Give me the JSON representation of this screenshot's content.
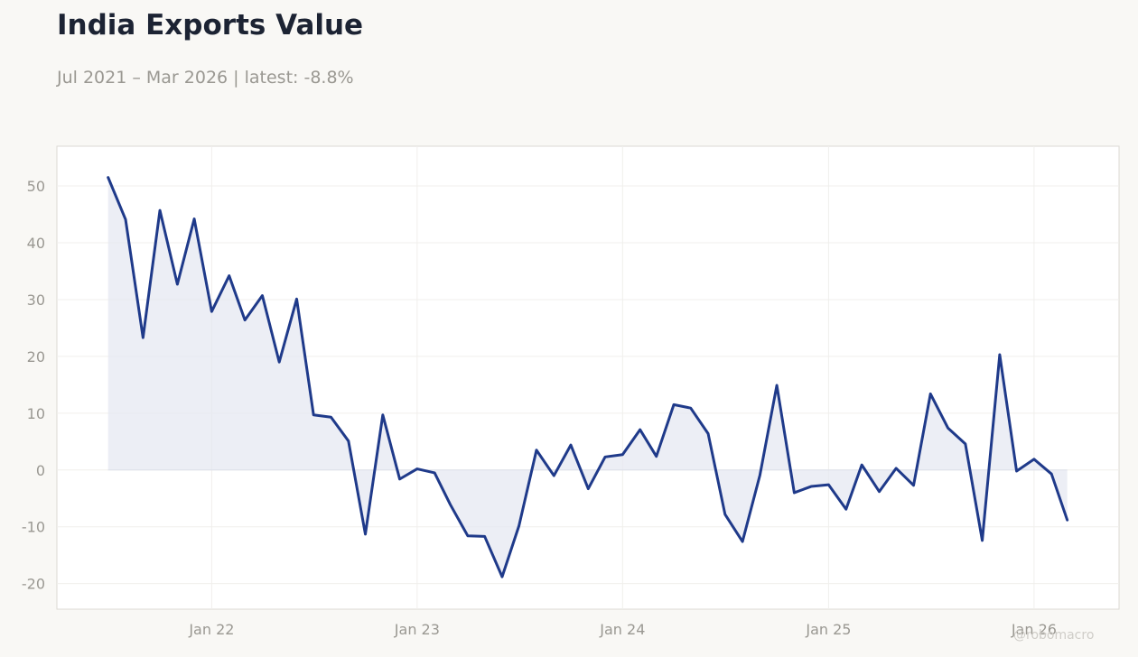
{
  "header": {
    "title": "India Exports Value",
    "subtitle": "Jul 2021 – Mar 2026 | latest: -8.8%"
  },
  "watermark": "@robomacro",
  "colors": {
    "line": "#1f3a8a",
    "fill": "#e6e8f1",
    "background": "#f9f8f5",
    "plot_background": "#ffffff",
    "grid": "#f0efec"
  },
  "chart_data": {
    "type": "area",
    "title": "India Exports Value",
    "subtitle": "Jul 2021 – Mar 2026 | latest: -8.8%",
    "xlabel": "",
    "ylabel": "",
    "ylim": [
      -24.5,
      57
    ],
    "xlim": [
      "2021-04-01",
      "2026-06-01"
    ],
    "grid": true,
    "legend": "none",
    "y_ticks": [
      50,
      40,
      30,
      20,
      10,
      0,
      -10,
      -20
    ],
    "y_tick_labels": [
      "50",
      "40",
      "30",
      "20",
      "10",
      "0",
      "-10",
      "-20"
    ],
    "x_ticks": [
      "2022-01-01",
      "2023-01-01",
      "2024-01-01",
      "2025-01-01",
      "2026-01-01"
    ],
    "x_tick_labels": [
      "Jan 22",
      "Jan 23",
      "Jan 24",
      "Jan 25",
      "Jan 26"
    ],
    "series": [
      {
        "x": [
          "2021-07-01",
          "2021-08-01",
          "2021-09-01",
          "2021-10-01",
          "2021-11-01",
          "2021-12-01",
          "2022-01-01",
          "2022-02-01",
          "2022-03-01",
          "2022-04-01",
          "2022-05-01",
          "2022-06-01",
          "2022-07-01",
          "2022-08-01",
          "2022-09-01",
          "2022-10-01",
          "2022-11-01",
          "2022-12-01",
          "2023-01-01",
          "2023-02-01",
          "2023-03-01",
          "2023-04-01",
          "2023-05-01",
          "2023-06-01",
          "2023-07-01",
          "2023-08-01",
          "2023-09-01",
          "2023-10-01",
          "2023-11-01",
          "2023-12-01",
          "2024-01-01",
          "2024-02-01",
          "2024-03-01",
          "2024-04-01",
          "2024-05-01",
          "2024-06-01",
          "2024-07-01",
          "2024-08-01",
          "2024-09-01",
          "2024-10-01",
          "2024-11-01",
          "2024-12-01",
          "2025-01-01",
          "2025-02-01",
          "2025-03-01",
          "2025-04-01",
          "2025-05-01",
          "2025-06-01",
          "2025-07-01",
          "2025-08-01",
          "2025-09-01",
          "2025-10-01",
          "2025-11-01",
          "2025-12-01",
          "2026-01-01",
          "2026-02-01",
          "2026-03-01"
        ],
        "values": [
          51.5,
          44.1,
          23.3,
          45.7,
          32.7,
          44.2,
          27.9,
          34.2,
          26.4,
          30.7,
          19.0,
          30.1,
          9.7,
          9.3,
          5.1,
          -11.3,
          9.7,
          -1.6,
          0.2,
          -0.5,
          -6.1,
          -11.6,
          -11.7,
          -18.8,
          -9.8,
          3.5,
          -1.0,
          4.4,
          -3.3,
          2.3,
          2.7,
          7.1,
          2.4,
          11.5,
          10.9,
          6.4,
          -7.8,
          -12.6,
          -0.9,
          14.9,
          -4.0,
          -2.9,
          -2.6,
          -6.9,
          0.9,
          -3.8,
          0.3,
          -2.7,
          13.4,
          7.4,
          4.6,
          -12.4,
          20.3,
          -0.2,
          1.9,
          -0.7,
          -8.8
        ]
      }
    ]
  }
}
